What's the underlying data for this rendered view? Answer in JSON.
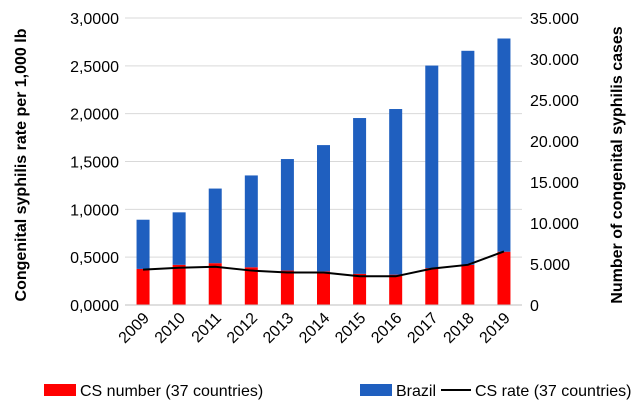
{
  "chart_data": {
    "type": "bar",
    "categories": [
      "2009",
      "2010",
      "2011",
      "2012",
      "2013",
      "2014",
      "2015",
      "2016",
      "2017",
      "2018",
      "2019"
    ],
    "series": [
      {
        "name": "CS number (37 countries)",
        "kind": "bar",
        "axis": "right",
        "color": "#ff0000",
        "values": [
          4400,
          4900,
          5100,
          4600,
          4200,
          4100,
          3800,
          3700,
          4500,
          4900,
          6500
        ]
      },
      {
        "name": "Brazil",
        "kind": "bar",
        "axis": "right",
        "color": "#1f5fbf",
        "values": [
          6000,
          6400,
          9100,
          11200,
          13600,
          15400,
          19000,
          20200,
          24700,
          26100,
          26000
        ]
      },
      {
        "name": "CS rate (37 countries)",
        "kind": "line",
        "axis": "left",
        "color": "#000000",
        "values": [
          0.37,
          0.39,
          0.4,
          0.36,
          0.34,
          0.34,
          0.3,
          0.3,
          0.38,
          0.42,
          0.56
        ]
      }
    ],
    "stacked": true,
    "y_left": {
      "label": "Congenital syphilis rate per 1,000 lb",
      "min": 0,
      "max": 3,
      "step": 0.5,
      "ticks": [
        "0,0000",
        "0,5000",
        "1,0000",
        "1,5000",
        "2,0000",
        "2,5000",
        "3,0000"
      ]
    },
    "y_right": {
      "label": "Number of congenital syphilis cases",
      "min": 0,
      "max": 35000,
      "step": 5000,
      "ticks": [
        "0",
        "5.000",
        "10.000",
        "15.000",
        "20.000",
        "25.000",
        "30.000",
        "35.000"
      ]
    },
    "grid": true,
    "legend_position": "bottom"
  }
}
